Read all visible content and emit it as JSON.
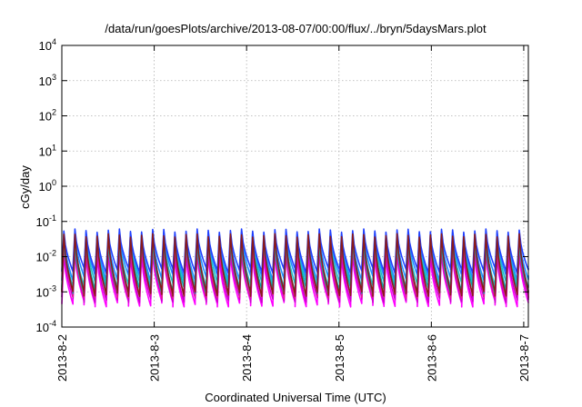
{
  "chart_data": {
    "type": "line",
    "title": "/data/run/goesPlots/archive/2013-08-07/00:00/flux/../bryn/5daysMars.plot",
    "xlabel": "Coordinated Universal Time (UTC)",
    "ylabel": "cGy/day",
    "y_scale": "log",
    "ylim": [
      0.0001,
      10000
    ],
    "xlim": [
      "2013-08-02",
      "2013-08-07"
    ],
    "y_ticks": [
      {
        "base": "10",
        "exp": "-4",
        "value": 0.0001
      },
      {
        "base": "10",
        "exp": "-3",
        "value": 0.001
      },
      {
        "base": "10",
        "exp": "-2",
        "value": 0.01
      },
      {
        "base": "10",
        "exp": "-1",
        "value": 0.1
      },
      {
        "base": "10",
        "exp": "0",
        "value": 1
      },
      {
        "base": "10",
        "exp": "1",
        "value": 10
      },
      {
        "base": "10",
        "exp": "2",
        "value": 100
      },
      {
        "base": "10",
        "exp": "3",
        "value": 1000
      },
      {
        "base": "10",
        "exp": "4",
        "value": 10000
      }
    ],
    "x_ticks": [
      "2013-8-2",
      "2013-8-3",
      "2013-8-4",
      "2013-8-5",
      "2013-8-6",
      "2013-8-7"
    ],
    "grid": true,
    "legend": "none",
    "series": [
      {
        "color": "#ff00ff",
        "peak": 0.012,
        "trough": 0.00045
      },
      {
        "color": "#cc00cc",
        "peak": 0.016,
        "trough": 0.0006
      },
      {
        "color": "#e0208a",
        "peak": 0.022,
        "trough": 0.0008
      },
      {
        "color": "#00aaaa",
        "peak": 0.03,
        "trough": 0.0011
      },
      {
        "color": "#20c0c0",
        "peak": 0.036,
        "trough": 0.0016
      },
      {
        "color": "#1e90ff",
        "peak": 0.045,
        "trough": 0.0025
      },
      {
        "color": "#2040ff",
        "peak": 0.055,
        "trough": 0.004
      },
      {
        "color": "#8b1a1a",
        "peak": 0.04,
        "trough": 0.0009
      }
    ]
  }
}
